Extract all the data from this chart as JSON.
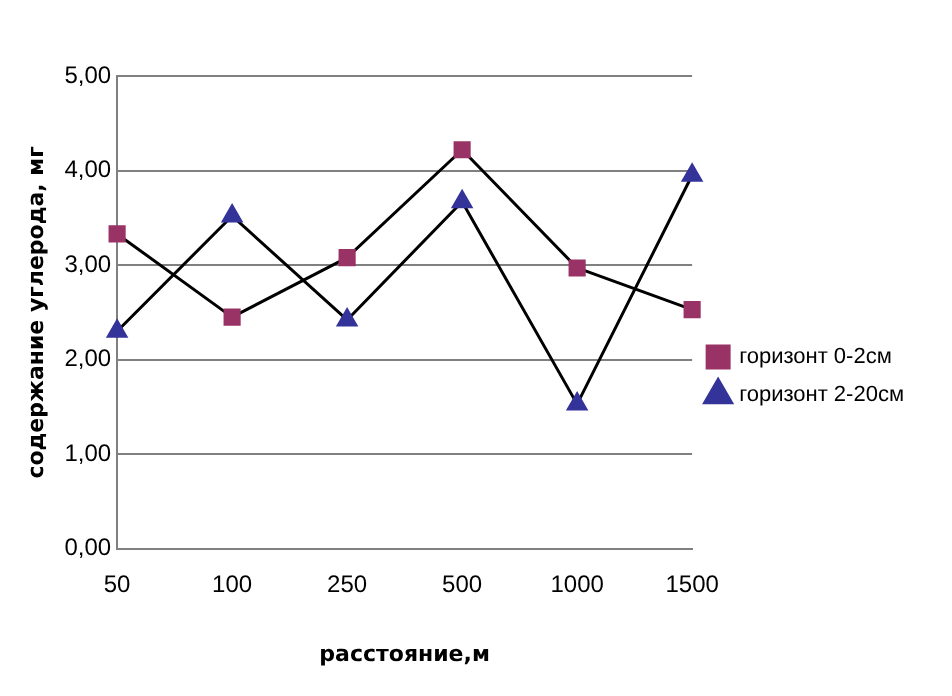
{
  "chart_data": {
    "type": "line",
    "xlabel": "расстояние,м",
    "ylabel": "содержание углерода, мг",
    "categories": [
      "50",
      "100",
      "250",
      "500",
      "1000",
      "1500"
    ],
    "series": [
      {
        "name": "горизонт 0-2см",
        "color": "#993366",
        "marker": "square",
        "values": [
          3.33,
          2.45,
          3.08,
          4.22,
          2.97,
          2.53
        ]
      },
      {
        "name": "горизонт 2-20см",
        "color": "#333399",
        "marker": "triangle",
        "values": [
          2.3,
          3.52,
          2.42,
          3.67,
          1.53,
          3.95
        ]
      }
    ],
    "ylim": [
      0,
      5
    ],
    "yticks": [
      {
        "value": 0,
        "label": "0,00"
      },
      {
        "value": 1,
        "label": "1,00"
      },
      {
        "value": 2,
        "label": "2,00"
      },
      {
        "value": 3,
        "label": "3,00"
      },
      {
        "value": 4,
        "label": "4,00"
      },
      {
        "value": 5,
        "label": "5,00"
      }
    ],
    "grid": "y",
    "legend": "right"
  }
}
